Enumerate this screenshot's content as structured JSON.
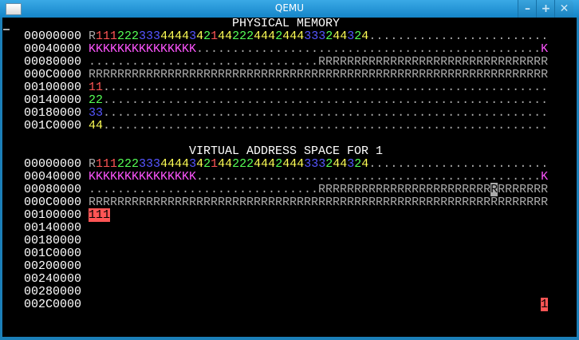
{
  "window": {
    "title": "QEMU",
    "buttons": {
      "minimize": "–",
      "maximize": "+",
      "close": "✕"
    }
  },
  "colors": {
    "R": "#aaaaaa",
    ".": "#aaaaaa",
    "1": "#ff5555",
    "2": "#55ff55",
    "3": "#5555ff",
    "4": "#ffff55",
    "K": "#ff55ff",
    "default": "#aaaaaa"
  },
  "sections": [
    {
      "heading": "PHYSICAL MEMORY",
      "rows": [
        {
          "addr": "00000000",
          "cells": "R11122233344443421442224442444333244324........................."
        },
        {
          "addr": "00040000",
          "cells": "KKKKKKKKKKKKKKK................................................K"
        },
        {
          "addr": "00080000",
          "cells": "................................RRRRRRRRRRRRRRRRRRRRRRRRRRRRRRRR"
        },
        {
          "addr": "000C0000",
          "cells": "RRRRRRRRRRRRRRRRRRRRRRRRRRRRRRRRRRRRRRRRRRRRRRRRRRRRRRRRRRRRRRRR"
        },
        {
          "addr": "00100000",
          "cells": "11.............................................................."
        },
        {
          "addr": "00140000",
          "cells": "22.............................................................."
        },
        {
          "addr": "00180000",
          "cells": "33.............................................................."
        },
        {
          "addr": "001C0000",
          "cells": "44.............................................................."
        }
      ]
    },
    {
      "heading": "VIRTUAL ADDRESS SPACE FOR 1",
      "rows": [
        {
          "addr": "00000000",
          "cells": "R11122233344443421442224442444333244324........................."
        },
        {
          "addr": "00040000",
          "cells": "KKKKKKKKKKKKKKK................................................K"
        },
        {
          "addr": "00080000",
          "cells": "................................RRRRRRRRRRRRRRRRRRRRRRRRRRRRRRRR",
          "highlight": {
            "cols": [
              56
            ],
            "bg": "#aaaaaa",
            "fg": "#000000"
          }
        },
        {
          "addr": "000C0000",
          "cells": "RRRRRRRRRRRRRRRRRRRRRRRRRRRRRRRRRRRRRRRRRRRRRRRRRRRRRRRRRRRRRRRR"
        },
        {
          "addr": "00100000",
          "cells": "111",
          "highlight": {
            "cols": [
              0,
              1,
              2
            ],
            "bg": "#ff5555",
            "fg": "#000000"
          }
        },
        {
          "addr": "00140000",
          "cells": ""
        },
        {
          "addr": "00180000",
          "cells": ""
        },
        {
          "addr": "001C0000",
          "cells": ""
        },
        {
          "addr": "00200000",
          "cells": ""
        },
        {
          "addr": "00240000",
          "cells": ""
        },
        {
          "addr": "00280000",
          "cells": ""
        },
        {
          "addr": "002C0000",
          "cells": "1",
          "align": "right",
          "highlight": {
            "cols": [
              63
            ],
            "bg": "#ff5555",
            "fg": "#000000"
          }
        }
      ]
    }
  ]
}
